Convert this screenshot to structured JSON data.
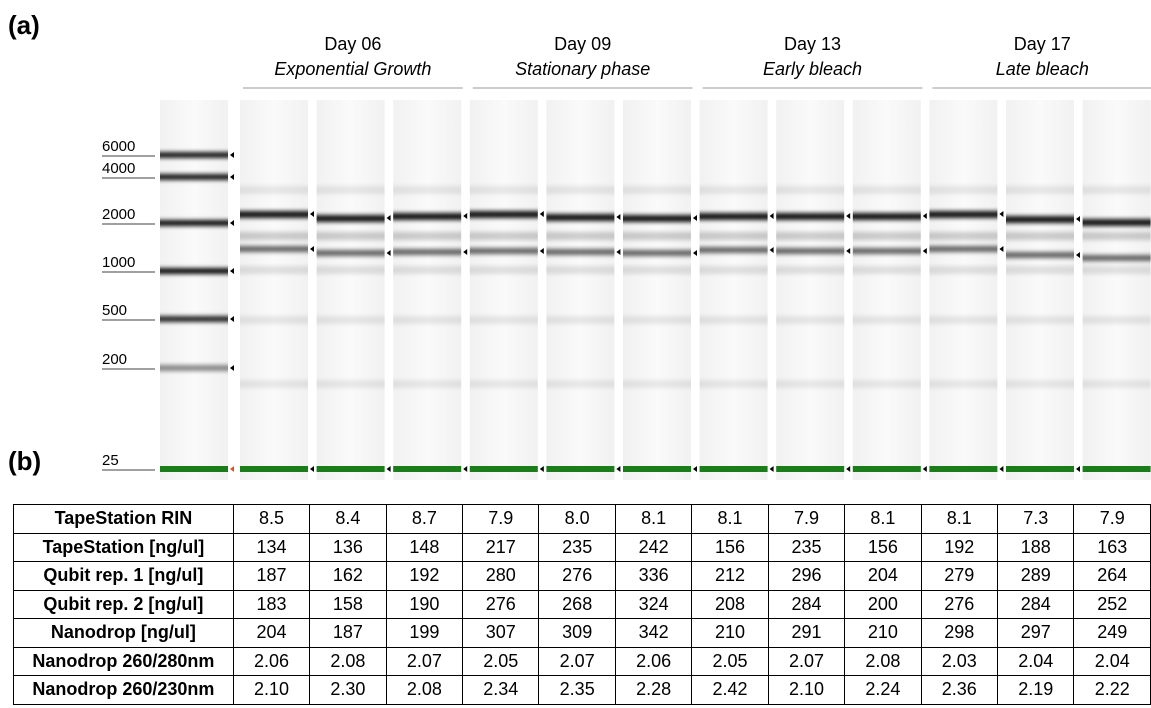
{
  "panel_a": "(a)",
  "panel_b": "(b)",
  "groups": [
    {
      "day": "Day 06",
      "phase": "Exponential Growth"
    },
    {
      "day": "Day 09",
      "phase": "Stationary phase"
    },
    {
      "day": "Day 13",
      "phase": "Early bleach"
    },
    {
      "day": "Day 17",
      "phase": "Late bleach"
    }
  ],
  "ladder": [
    "6000",
    "4000",
    "2000",
    "1000",
    "500",
    "200",
    "25"
  ],
  "table": {
    "rows": [
      [
        "TapeStation RIN",
        "8.5",
        "8.4",
        "8.7",
        "7.9",
        "8.0",
        "8.1",
        "8.1",
        "7.9",
        "8.1",
        "8.1",
        "7.3",
        "7.9"
      ],
      [
        "TapeStation [ng/ul]",
        "134",
        "136",
        "148",
        "217",
        "235",
        "242",
        "156",
        "235",
        "156",
        "192",
        "188",
        "163"
      ],
      [
        "Qubit rep. 1 [ng/ul]",
        "187",
        "162",
        "192",
        "280",
        "276",
        "336",
        "212",
        "296",
        "204",
        "279",
        "289",
        "264"
      ],
      [
        "Qubit rep. 2 [ng/ul]",
        "183",
        "158",
        "190",
        "276",
        "268",
        "324",
        "208",
        "284",
        "200",
        "276",
        "284",
        "252"
      ],
      [
        "Nanodrop [ng/ul]",
        "204",
        "187",
        "199",
        "307",
        "309",
        "342",
        "210",
        "291",
        "210",
        "298",
        "297",
        "249"
      ],
      [
        "Nanodrop 260/280nm",
        "2.06",
        "2.08",
        "2.07",
        "2.05",
        "2.07",
        "2.06",
        "2.05",
        "2.07",
        "2.08",
        "2.03",
        "2.04",
        "2.04"
      ],
      [
        "Nanodrop 260/230nm",
        "2.10",
        "2.30",
        "2.08",
        "2.34",
        "2.35",
        "2.28",
        "2.42",
        "2.10",
        "2.24",
        "2.36",
        "2.19",
        "2.22"
      ]
    ]
  }
}
